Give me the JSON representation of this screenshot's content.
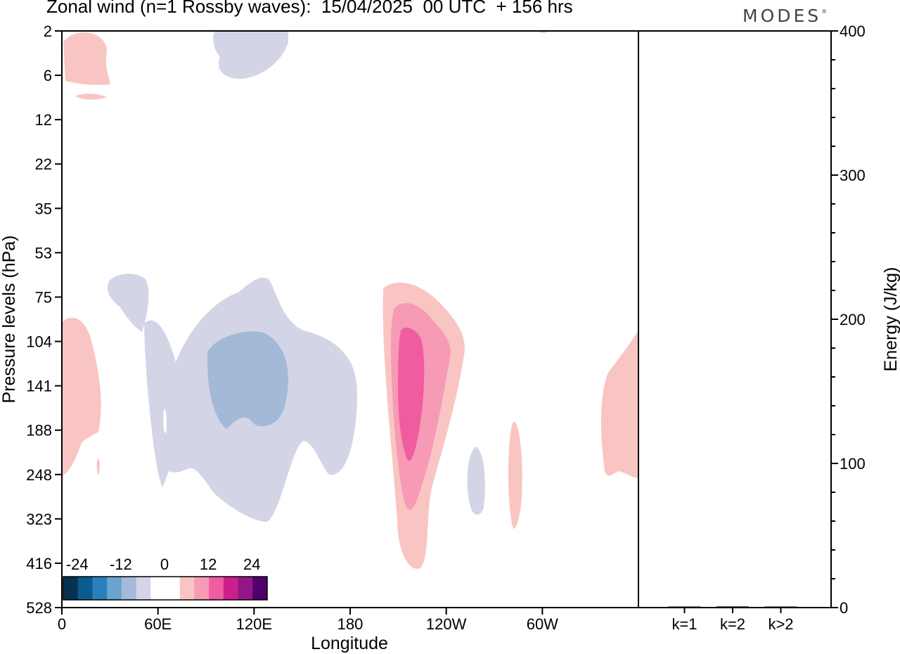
{
  "title": "Zonal wind (n=1 Rossby waves):  15/04/2025  00 UTC  + 156 hrs",
  "brand": "MODES",
  "brand_mark": "®",
  "chart_data": [
    {
      "type": "heatmap",
      "xlabel": "Longitude",
      "ylabel": "Pressure levels (hPa)",
      "x_ticks": [
        "0",
        "60E",
        "120E",
        "180",
        "120W",
        "60W"
      ],
      "x_tick_values": [
        0,
        60,
        120,
        180,
        240,
        300
      ],
      "xlim": [
        0,
        360
      ],
      "y_ticks": [
        "2",
        "6",
        "12",
        "22",
        "35",
        "53",
        "75",
        "104",
        "141",
        "188",
        "248",
        "323",
        "416",
        "528"
      ],
      "colorbar": {
        "labels": [
          "-24",
          "-12",
          "0",
          "12",
          "24"
        ],
        "colors": [
          "#08304f",
          "#0b5b8e",
          "#2a7fbb",
          "#6aa4cf",
          "#a4b9d8",
          "#d3d4e6",
          "#ffffff",
          "#ffffff",
          "#f9c5c2",
          "#f69ab6",
          "#ef5da0",
          "#cc1f8b",
          "#941686",
          "#4f006b"
        ]
      },
      "features": [
        {
          "sign": "positive",
          "level": 1,
          "lon": 5,
          "pressure": 4,
          "note": "upper-level blob"
        },
        {
          "sign": "negative",
          "level": 1,
          "lon": 120,
          "pressure": 150
        },
        {
          "sign": "negative",
          "level": 2,
          "lon": 115,
          "pressure": 140
        },
        {
          "sign": "positive",
          "level": 3,
          "lon": 213,
          "pressure": 150
        },
        {
          "sign": "positive",
          "level": 1,
          "lon": 5,
          "pressure": 160
        },
        {
          "sign": "positive",
          "level": 1,
          "lon": 350,
          "pressure": 170
        },
        {
          "sign": "negative",
          "level": 1,
          "lon": 257,
          "pressure": 260
        },
        {
          "sign": "positive",
          "level": 1,
          "lon": 283,
          "pressure": 250
        }
      ]
    },
    {
      "type": "bar",
      "categories": [
        "k=1",
        "k=2",
        "k>2"
      ],
      "values": [
        0.5,
        0.8,
        0.4
      ],
      "ylabel": "Energy (J/kg)",
      "ylim": [
        0,
        400
      ],
      "y_ticks": [
        "0",
        "100",
        "200",
        "300",
        "400"
      ]
    }
  ]
}
